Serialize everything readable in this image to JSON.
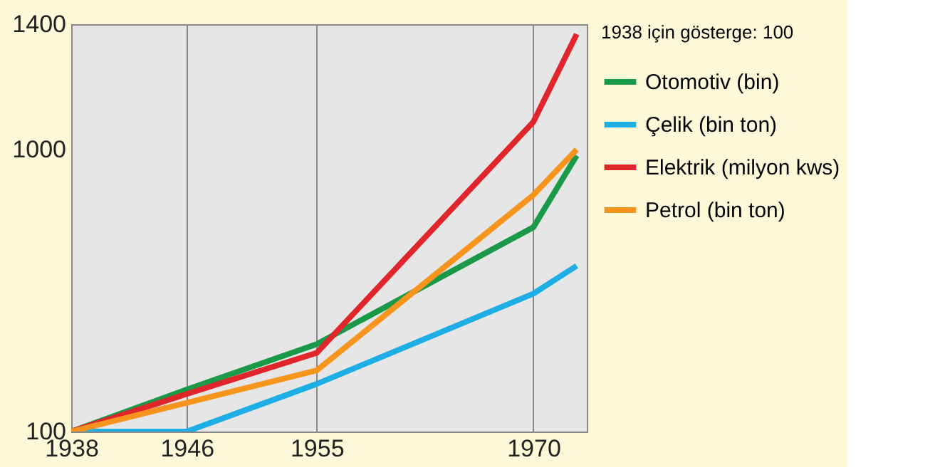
{
  "chart_data": {
    "type": "line",
    "legend_title": "1938 için gösterge: 100",
    "x": [
      1938,
      1946,
      1955,
      1970,
      1973
    ],
    "xlim": [
      1938,
      1973.7
    ],
    "xticks": [
      1938,
      1946,
      1955,
      1970
    ],
    "ylim": [
      100,
      1400
    ],
    "yticks": [
      100,
      1000,
      1400
    ],
    "grid": "x",
    "legend": "right",
    "line_style": "solid",
    "marker": "none",
    "series": [
      {
        "name": "Otomotiv (bin)",
        "color": "#1a9a48",
        "values": [
          100,
          234,
          379,
          752,
          981
        ]
      },
      {
        "name": "Çelik (bin ton)",
        "color": "#1eaee6",
        "values": [
          100,
          100,
          252,
          540,
          629
        ]
      },
      {
        "name": "Elektrik (milyon kws)",
        "color": "#e0262b",
        "values": [
          100,
          220,
          351,
          1088,
          1368
        ]
      },
      {
        "name": "Petrol (bin ton)",
        "color": "#f7941d",
        "values": [
          100,
          192,
          295,
          855,
          1000
        ]
      }
    ]
  }
}
